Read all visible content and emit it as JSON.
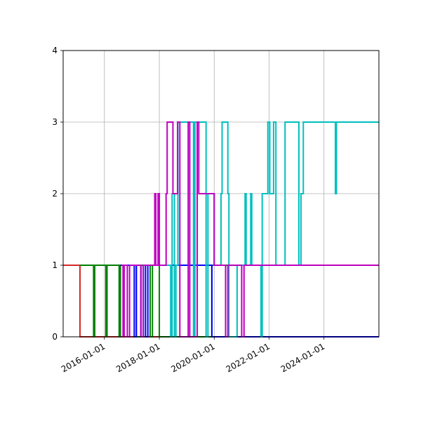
{
  "chart_data": {
    "type": "line",
    "title": "",
    "xlabel": "",
    "ylabel": "",
    "xlim": [
      "2014-07-01",
      "2026-01-01"
    ],
    "ylim": [
      0,
      4
    ],
    "grid": true,
    "x_ticks": [
      "2016-01-01",
      "2018-01-01",
      "2020-01-01",
      "2022-01-01",
      "2024-01-01"
    ],
    "y_ticks": [
      0,
      1,
      2,
      3,
      4
    ],
    "series": [
      {
        "color": "#d62728",
        "x": [
          "2014-07-01",
          "2015-02-10",
          "2015-02-10",
          "2026-01-01"
        ],
        "y": [
          1,
          1,
          0,
          0
        ]
      },
      {
        "color": "#008000",
        "x": [
          "2015-02-10",
          "2015-08-10",
          "2015-08-10",
          "2015-08-25",
          "2015-08-25",
          "2016-01-20",
          "2016-01-20",
          "2016-02-05",
          "2016-02-05",
          "2016-07-15",
          "2016-07-15",
          "2016-08-01",
          "2016-08-01",
          "2017-03-01",
          "2017-03-01",
          "2017-05-01",
          "2017-05-01",
          "2017-09-01",
          "2017-09-01",
          "2017-10-01",
          "2017-10-01",
          "2018-01-01",
          "2018-01-01",
          "2019-12-01",
          "2019-12-01",
          "2026-01-01"
        ],
        "y": [
          1,
          1,
          0,
          0,
          1,
          1,
          0,
          0,
          1,
          1,
          0,
          0,
          1,
          1,
          0,
          0,
          1,
          1,
          0,
          0,
          1,
          1,
          0,
          0,
          1,
          1
        ]
      },
      {
        "color": "#0000ff",
        "x": [
          "2016-08-01",
          "2017-02-01",
          "2017-02-01",
          "2017-03-01",
          "2017-03-01",
          "2017-05-01",
          "2017-05-01",
          "2017-06-01",
          "2017-06-01",
          "2017-07-01",
          "2017-07-01",
          "2017-08-01",
          "2017-08-01",
          "2019-12-01",
          "2019-12-01",
          "2026-01-01"
        ],
        "y": [
          1,
          1,
          0,
          0,
          1,
          1,
          0,
          0,
          1,
          1,
          0,
          0,
          1,
          1,
          0,
          0
        ]
      },
      {
        "color": "#00bfbf",
        "x": [
          "2018-01-01",
          "2018-06-01",
          "2018-06-01",
          "2018-06-20",
          "2018-06-20",
          "2018-07-20",
          "2018-07-20",
          "2018-08-10",
          "2018-08-10",
          "2018-09-05",
          "2018-09-05",
          "2019-04-01",
          "2019-04-01",
          "2019-04-20",
          "2019-04-20",
          "2019-09-15",
          "2019-09-15",
          "2019-10-10",
          "2019-10-10",
          "2020-01-01",
          "2020-01-01",
          "2020-04-01",
          "2020-04-01",
          "2020-04-15",
          "2020-04-15",
          "2020-07-01",
          "2020-07-01",
          "2020-07-15",
          "2020-07-15",
          "2020-11-01",
          "2020-11-01",
          "2021-02-15",
          "2021-02-15",
          "2021-03-01",
          "2021-03-01",
          "2021-05-01",
          "2021-05-01",
          "2021-05-15",
          "2021-05-15",
          "2021-09-15",
          "2021-09-15",
          "2021-10-01",
          "2021-10-01",
          "2021-12-15",
          "2021-12-15",
          "2022-01-10",
          "2022-01-10",
          "2022-03-01",
          "2022-03-01",
          "2022-04-01",
          "2022-04-01",
          "2022-08-01",
          "2022-08-01",
          "2023-02-01",
          "2023-02-01",
          "2023-03-01",
          "2023-03-01",
          "2023-04-01",
          "2023-04-01",
          "2024-06-01",
          "2024-06-01",
          "2024-06-15",
          "2024-06-15",
          "2026-01-01"
        ],
        "y": [
          1,
          1,
          0,
          0,
          2,
          2,
          0,
          0,
          1,
          1,
          3,
          3,
          0,
          0,
          3,
          3,
          0,
          0,
          2,
          2,
          1,
          1,
          2,
          2,
          3,
          3,
          2,
          2,
          0,
          0,
          1,
          1,
          2,
          2,
          1,
          1,
          2,
          2,
          1,
          1,
          0,
          0,
          2,
          2,
          3,
          3,
          2,
          2,
          3,
          3,
          1,
          1,
          3,
          3,
          1,
          1,
          2,
          2,
          3,
          3,
          2,
          2,
          3,
          3
        ]
      },
      {
        "color": "#bf00bf",
        "x": [
          "2016-08-20",
          "2016-09-05",
          "2016-09-05",
          "2016-09-20",
          "2016-09-20",
          "2016-11-01",
          "2016-11-01",
          "2016-12-01",
          "2016-12-01",
          "2017-05-01",
          "2017-05-01",
          "2017-06-01",
          "2017-06-01",
          "2017-11-01",
          "2017-11-01",
          "2017-11-15",
          "2017-11-15",
          "2017-12-15",
          "2017-12-15",
          "2018-01-01",
          "2018-01-01",
          "2018-02-15",
          "2018-02-15",
          "2018-04-01",
          "2018-04-01",
          "2018-04-15",
          "2018-04-15",
          "2018-07-01",
          "2018-07-01",
          "2018-09-01",
          "2018-09-01",
          "2018-10-01",
          "2018-10-01",
          "2019-01-20",
          "2019-01-20",
          "2019-02-10",
          "2019-02-10",
          "2019-05-20",
          "2019-05-20",
          "2019-06-10",
          "2019-06-10",
          "2020-01-01",
          "2020-01-01",
          "2020-06-01",
          "2020-06-01",
          "2020-07-01",
          "2020-07-01",
          "2021-01-01",
          "2021-01-01",
          "2021-02-01",
          "2021-02-01",
          "2026-01-01"
        ],
        "y": [
          1,
          1,
          0,
          0,
          1,
          1,
          0,
          0,
          1,
          1,
          0,
          0,
          1,
          1,
          2,
          2,
          1,
          1,
          2,
          2,
          1,
          1,
          1,
          1,
          2,
          2,
          3,
          3,
          2,
          2,
          3,
          3,
          0,
          0,
          3,
          3,
          0,
          0,
          3,
          3,
          2,
          2,
          1,
          1,
          0,
          0,
          1,
          1,
          0,
          0,
          1,
          1
        ]
      }
    ]
  }
}
